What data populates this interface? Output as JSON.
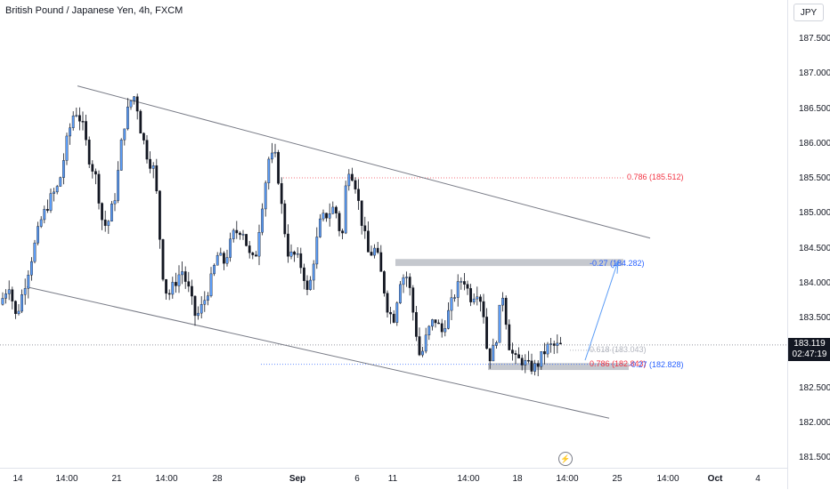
{
  "header": {
    "symbol_title": "British Pound / Japanese Yen, 4h, FXCM"
  },
  "price_axis": {
    "currency": "JPY",
    "ticks": [
      "187.500",
      "187.000",
      "186.500",
      "186.000",
      "185.500",
      "185.000",
      "184.500",
      "184.000",
      "183.500",
      "183.000",
      "182.500",
      "182.000",
      "181.500"
    ],
    "current_price": "183.119",
    "countdown": "02:47:19"
  },
  "time_axis": {
    "labels": [
      {
        "text": "14",
        "bold": false
      },
      {
        "text": "14:00",
        "bold": false
      },
      {
        "text": "21",
        "bold": false
      },
      {
        "text": "14:00",
        "bold": false
      },
      {
        "text": "28",
        "bold": false
      },
      {
        "text": "Sep",
        "bold": true
      },
      {
        "text": "6",
        "bold": false
      },
      {
        "text": "11",
        "bold": false
      },
      {
        "text": "14:00",
        "bold": false
      },
      {
        "text": "18",
        "bold": false
      },
      {
        "text": "14:00",
        "bold": false
      },
      {
        "text": "25",
        "bold": false
      },
      {
        "text": "14:00",
        "bold": false
      },
      {
        "text": "Oct",
        "bold": true
      },
      {
        "text": "4",
        "bold": false
      }
    ]
  },
  "annotations": {
    "fib_1": "0.786 (185.512)",
    "fib_2": "-0.27 (184.282)",
    "fib_3": "0.618 (183.043)",
    "fib_4": "0.786 (182.843)",
    "fib_5": "-0.27 (182.828)"
  },
  "colors": {
    "candle_up": "#5b9cf6",
    "candle_down": "#131722",
    "trendline": "#787b86",
    "fib_red": "#f23645",
    "fib_blue": "#2962ff",
    "zone": "#b2b5be"
  },
  "icons": {
    "alert": "lightning-bolt-icon"
  },
  "chart_data": {
    "type": "candlestick",
    "symbol": "British Pound / Japanese Yen",
    "interval": "4h",
    "source": "FXCM",
    "ylim": [
      181.4,
      187.8
    ],
    "last_price": 183.119,
    "path": [
      [
        0,
        183.7
      ],
      [
        10,
        184.0
      ],
      [
        18,
        183.5
      ],
      [
        26,
        183.9
      ],
      [
        36,
        184.4
      ],
      [
        46,
        184.9
      ],
      [
        56,
        185.2
      ],
      [
        66,
        185.4
      ],
      [
        76,
        186.1
      ],
      [
        84,
        186.5
      ],
      [
        92,
        186.3
      ],
      [
        100,
        185.8
      ],
      [
        108,
        185.5
      ],
      [
        116,
        184.8
      ],
      [
        122,
        184.9
      ],
      [
        130,
        185.3
      ],
      [
        138,
        186.2
      ],
      [
        146,
        186.6
      ],
      [
        152,
        186.7
      ],
      [
        158,
        186.2
      ],
      [
        166,
        185.8
      ],
      [
        174,
        185.6
      ],
      [
        182,
        184.2
      ],
      [
        188,
        183.8
      ],
      [
        196,
        184.0
      ],
      [
        204,
        184.2
      ],
      [
        212,
        183.9
      ],
      [
        220,
        183.5
      ],
      [
        228,
        183.7
      ],
      [
        236,
        184.0
      ],
      [
        244,
        184.4
      ],
      [
        252,
        184.3
      ],
      [
        262,
        184.7
      ],
      [
        272,
        184.8
      ],
      [
        280,
        184.4
      ],
      [
        286,
        184.3
      ],
      [
        294,
        185.1
      ],
      [
        302,
        185.8
      ],
      [
        310,
        185.8
      ],
      [
        318,
        184.9
      ],
      [
        324,
        184.4
      ],
      [
        332,
        184.4
      ],
      [
        340,
        184.2
      ],
      [
        346,
        183.8
      ],
      [
        354,
        184.5
      ],
      [
        360,
        184.9
      ],
      [
        368,
        185.0
      ],
      [
        376,
        185.1
      ],
      [
        384,
        184.6
      ],
      [
        390,
        185.7
      ],
      [
        398,
        185.5
      ],
      [
        406,
        184.9
      ],
      [
        414,
        184.4
      ],
      [
        422,
        184.5
      ],
      [
        430,
        184.0
      ],
      [
        436,
        183.6
      ],
      [
        442,
        183.5
      ],
      [
        450,
        184.1
      ],
      [
        458,
        184.1
      ],
      [
        466,
        183.4
      ],
      [
        472,
        182.9
      ],
      [
        480,
        183.3
      ],
      [
        488,
        183.5
      ],
      [
        496,
        183.3
      ],
      [
        504,
        183.6
      ],
      [
        512,
        183.9
      ],
      [
        520,
        184.1
      ],
      [
        528,
        183.8
      ],
      [
        536,
        183.9
      ],
      [
        542,
        183.7
      ],
      [
        548,
        182.9
      ],
      [
        556,
        183.1
      ],
      [
        564,
        183.9
      ],
      [
        572,
        183.1
      ],
      [
        578,
        182.9
      ],
      [
        586,
        182.9
      ],
      [
        594,
        182.8
      ],
      [
        602,
        182.8
      ],
      [
        610,
        183.0
      ],
      [
        616,
        183.1
      ],
      [
        624,
        183.1
      ],
      [
        630,
        183.1
      ],
      [
        636,
        183.12
      ]
    ]
  }
}
